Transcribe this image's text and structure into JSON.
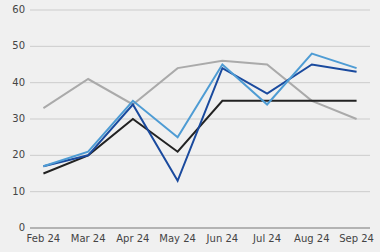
{
  "chart_data": {
    "type": "line",
    "categories": [
      "Feb 24",
      "Mar 24",
      "Apr 24",
      "May 24",
      "Jun 24",
      "Jul 24",
      "Aug 24",
      "Sep 24"
    ],
    "series": [
      {
        "color": "#aaaaaa",
        "values": [
          33,
          41,
          34,
          44,
          46,
          45,
          35,
          30
        ]
      },
      {
        "color": "#222222",
        "values": [
          15,
          20,
          30,
          21,
          35,
          35,
          35,
          35
        ]
      },
      {
        "color": "#1a4a9e",
        "values": [
          17,
          20,
          34,
          13,
          44,
          37,
          45,
          43
        ]
      },
      {
        "color": "#4e9cd4",
        "values": [
          17,
          21,
          35,
          25,
          45,
          34,
          48,
          44
        ]
      }
    ],
    "ylim": [
      0,
      60
    ],
    "yticks": [
      0,
      10,
      20,
      30,
      40,
      50,
      60
    ],
    "grid": true
  }
}
